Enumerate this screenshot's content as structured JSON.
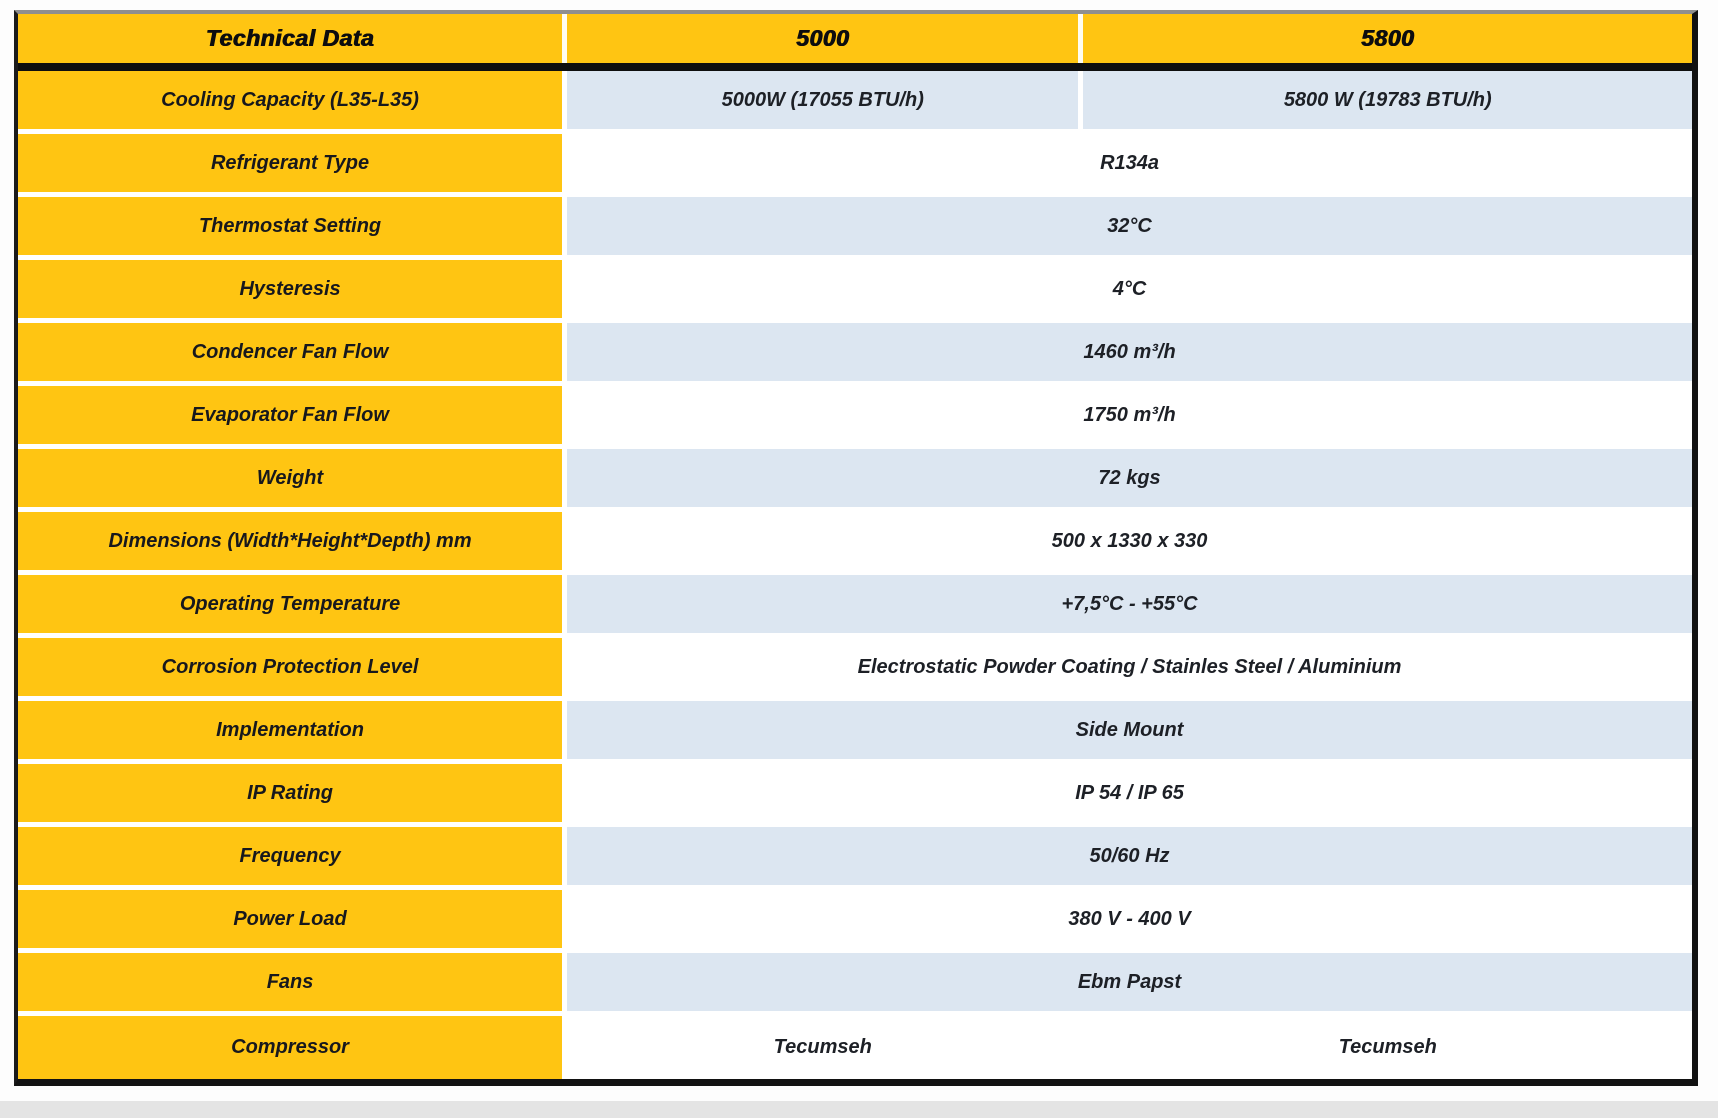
{
  "colors": {
    "yellow": "#FFC512",
    "light_blue": "#DCE6F1",
    "border_black": "#121212",
    "text_dark": "#1D2026"
  },
  "table": {
    "header": {
      "col1": "Technical Data",
      "col2": "5000",
      "col3": "5800"
    },
    "rows": [
      {
        "label": "Cooling Capacity (L35-L35)",
        "type": "split",
        "shade": "blue",
        "values": [
          "5000W (17055 BTU/h)",
          "5800 W (19783 BTU/h)"
        ]
      },
      {
        "label": "Refrigerant Type",
        "type": "merged",
        "shade": "white",
        "value": "R134a"
      },
      {
        "label": "Thermostat Setting",
        "type": "merged",
        "shade": "blue",
        "value": "32°C"
      },
      {
        "label": "Hysteresis",
        "type": "merged",
        "shade": "white",
        "value": "4°C"
      },
      {
        "label": "Condencer Fan Flow",
        "type": "merged",
        "shade": "blue",
        "value": "1460 m³/h"
      },
      {
        "label": "Evaporator Fan Flow",
        "type": "merged",
        "shade": "white",
        "value": "1750 m³/h"
      },
      {
        "label": "Weight",
        "type": "merged",
        "shade": "blue",
        "value": "72 kgs"
      },
      {
        "label": "Dimensions (Width*Height*Depth) mm",
        "type": "merged",
        "shade": "white",
        "value": "500 x 1330 x 330"
      },
      {
        "label": "Operating Temperature",
        "type": "merged",
        "shade": "blue",
        "value": "+7,5°C - +55°C"
      },
      {
        "label": "Corrosion Protection Level",
        "type": "merged",
        "shade": "white",
        "value": "Electrostatic Powder Coating / Stainles Steel / Aluminium"
      },
      {
        "label": "Implementation",
        "type": "merged",
        "shade": "blue",
        "value": "Side Mount"
      },
      {
        "label": "IP Rating",
        "type": "merged",
        "shade": "white",
        "value": "IP 54 / IP 65"
      },
      {
        "label": "Frequency",
        "type": "merged",
        "shade": "blue",
        "value": "50/60 Hz"
      },
      {
        "label": "Power Load",
        "type": "merged",
        "shade": "white",
        "value": "380 V - 400 V"
      },
      {
        "label": "Fans",
        "type": "merged",
        "shade": "blue",
        "value": "Ebm Papst"
      },
      {
        "label": "Compressor",
        "type": "split",
        "shade": "white",
        "values": [
          "Tecumseh",
          "Tecumseh"
        ]
      }
    ]
  }
}
